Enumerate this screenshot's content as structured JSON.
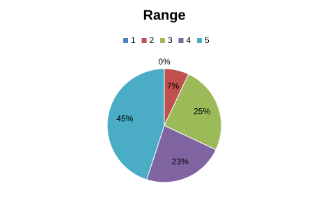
{
  "chart_data": {
    "type": "pie",
    "title": "Range",
    "categories": [
      "1",
      "2",
      "3",
      "4",
      "5"
    ],
    "values": [
      0,
      7,
      25,
      23,
      45
    ],
    "value_labels": [
      "0%",
      "7%",
      "25%",
      "23%",
      "45%"
    ],
    "colors": [
      "#4f81bd",
      "#c0504d",
      "#9bbb59",
      "#8064a2",
      "#4bacc6"
    ],
    "legend": "top"
  }
}
